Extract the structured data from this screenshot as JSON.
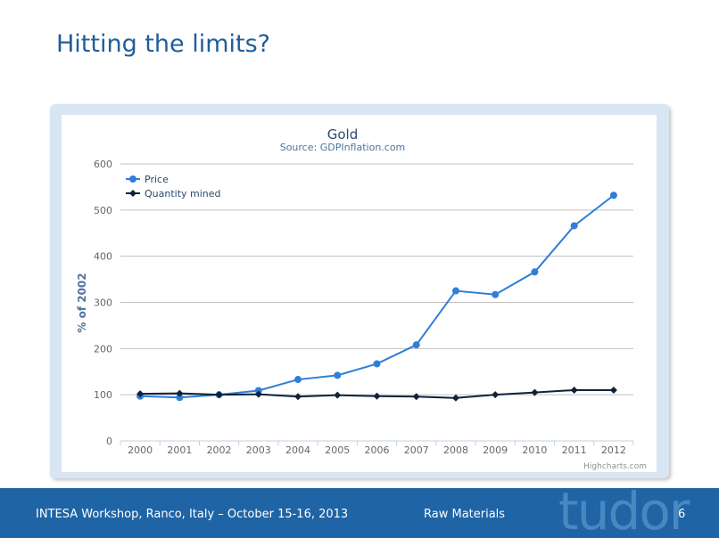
{
  "slide": {
    "title": "Hitting the limits?",
    "footer": {
      "left": "INTESA Workshop, Ranco, Italy – October 15-16, 2013",
      "center": "Raw Materials",
      "page": "6"
    },
    "logo_text": "tudor"
  },
  "chart_data": {
    "type": "line",
    "title": "Gold",
    "subtitle": "Source: GDPInflation.com",
    "xlabel": "",
    "ylabel": "% of 2002",
    "categories": [
      "2000",
      "2001",
      "2002",
      "2003",
      "2004",
      "2005",
      "2006",
      "2007",
      "2008",
      "2009",
      "2010",
      "2011",
      "2012"
    ],
    "ylim": [
      0,
      600
    ],
    "yticks": [
      0,
      100,
      200,
      300,
      400,
      500,
      600
    ],
    "grid": true,
    "legend_position": "top-left",
    "credits": "Highcharts.com",
    "series": [
      {
        "name": "Price",
        "color": "#2f7ed8",
        "marker": "circle",
        "values": [
          97,
          94,
          100,
          109,
          133,
          142,
          167,
          208,
          325,
          317,
          366,
          466,
          532
        ]
      },
      {
        "name": "Quantity mined",
        "color": "#0d233a",
        "marker": "diamond",
        "values": [
          102,
          103,
          100,
          101,
          96,
          99,
          97,
          96,
          93,
          100,
          105,
          110,
          110
        ]
      }
    ]
  }
}
